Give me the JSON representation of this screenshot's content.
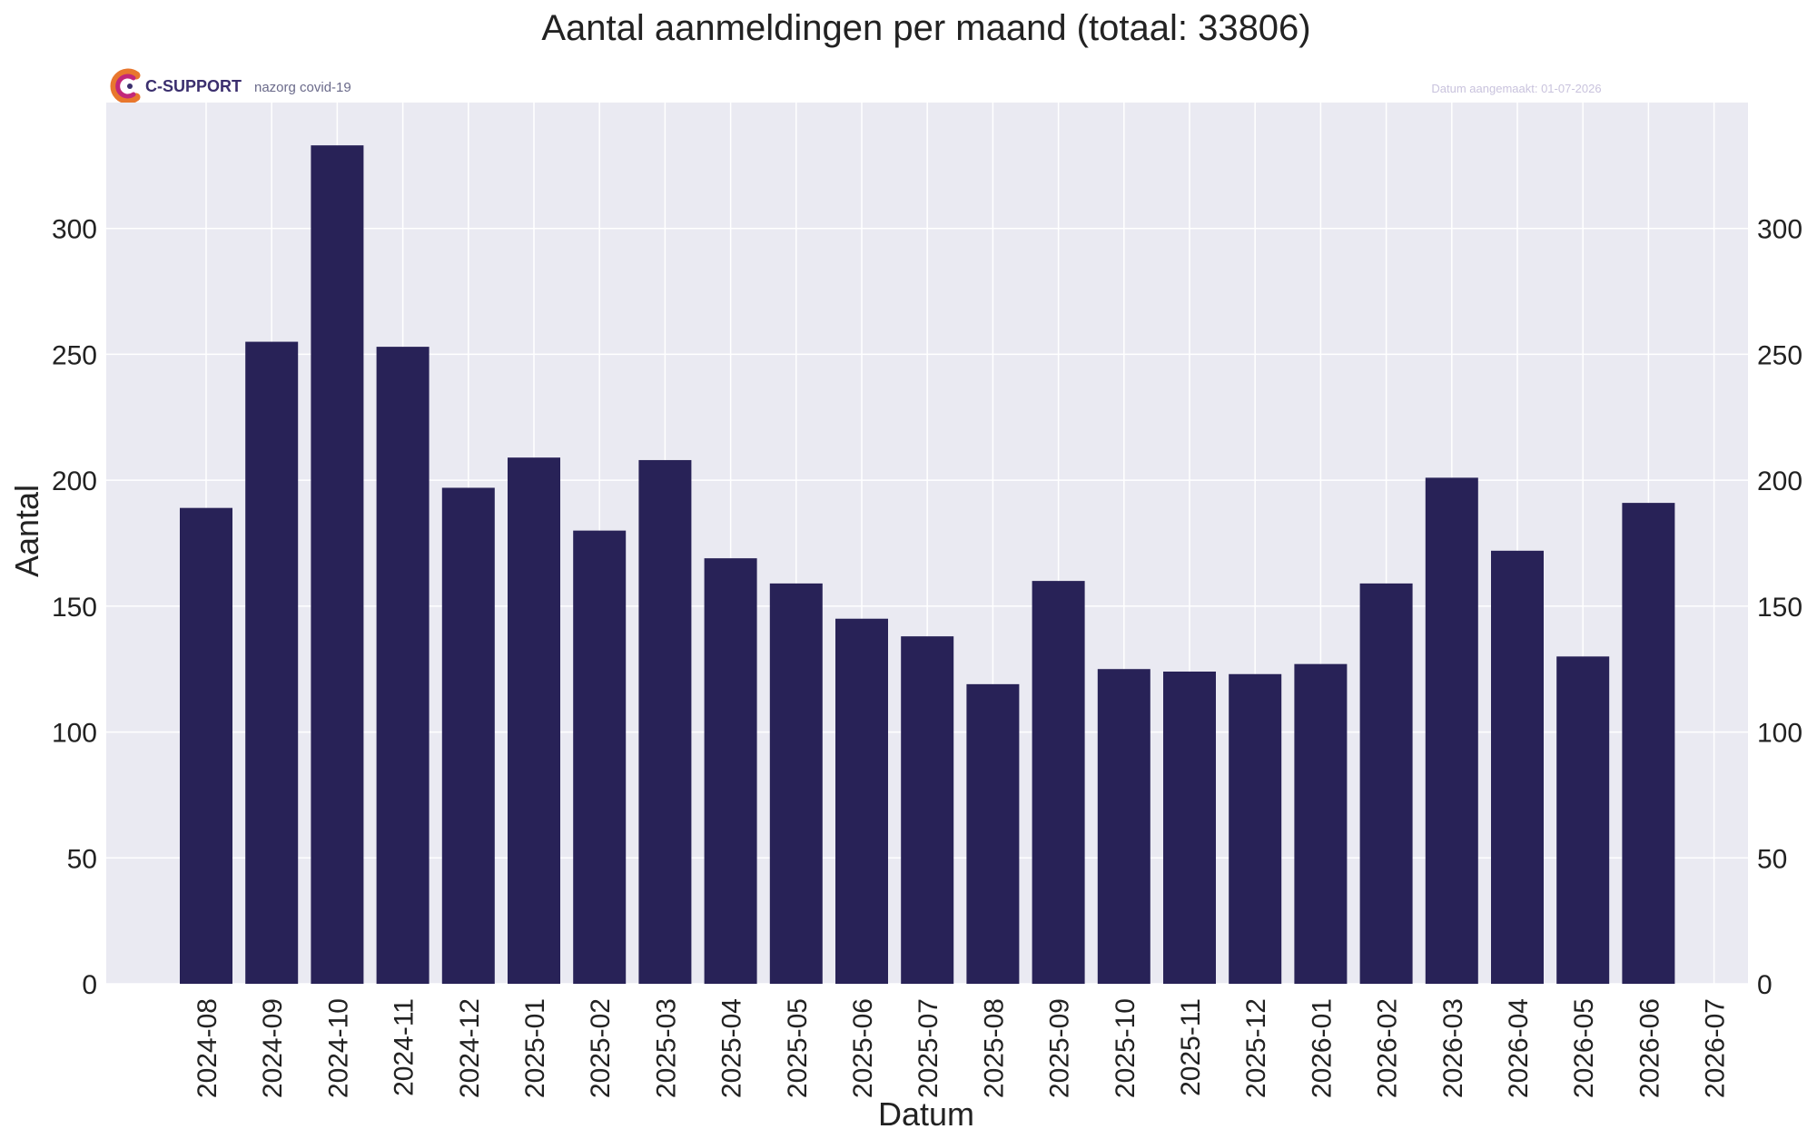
{
  "logo": {
    "brand": "C-SUPPORT",
    "subtitle": "nazorg covid-19"
  },
  "created_label": "Datum aangemaakt: 01-07-2026",
  "colors": {
    "bar": "#282257",
    "plot_bg": "#eaeaf2",
    "grid": "#ffffff",
    "muted_tick": "#c8c8c8"
  },
  "chart_data": {
    "type": "bar",
    "title": "Aantal aanmeldingen per maand (totaal: 33806)",
    "xlabel": "Datum",
    "ylabel": "Aantal",
    "categories": [
      "2024-08",
      "2024-09",
      "2024-10",
      "2024-11",
      "2024-12",
      "2025-01",
      "2025-02",
      "2025-03",
      "2025-04",
      "2025-05",
      "2025-06",
      "2025-07",
      "2025-08",
      "2025-09",
      "2025-10",
      "2025-11",
      "2025-12",
      "2026-01",
      "2026-02",
      "2026-03",
      "2026-04",
      "2026-05",
      "2026-06",
      "2026-07"
    ],
    "values": [
      189,
      255,
      333,
      253,
      197,
      209,
      180,
      208,
      169,
      159,
      145,
      138,
      119,
      160,
      125,
      124,
      123,
      127,
      159,
      201,
      172,
      130,
      191,
      null
    ],
    "muted_categories": [
      "2026-07"
    ],
    "yticks": [
      0,
      50,
      100,
      150,
      200,
      250,
      300
    ],
    "ylim": [
      0,
      350
    ],
    "grid": true,
    "right_axis": true
  }
}
